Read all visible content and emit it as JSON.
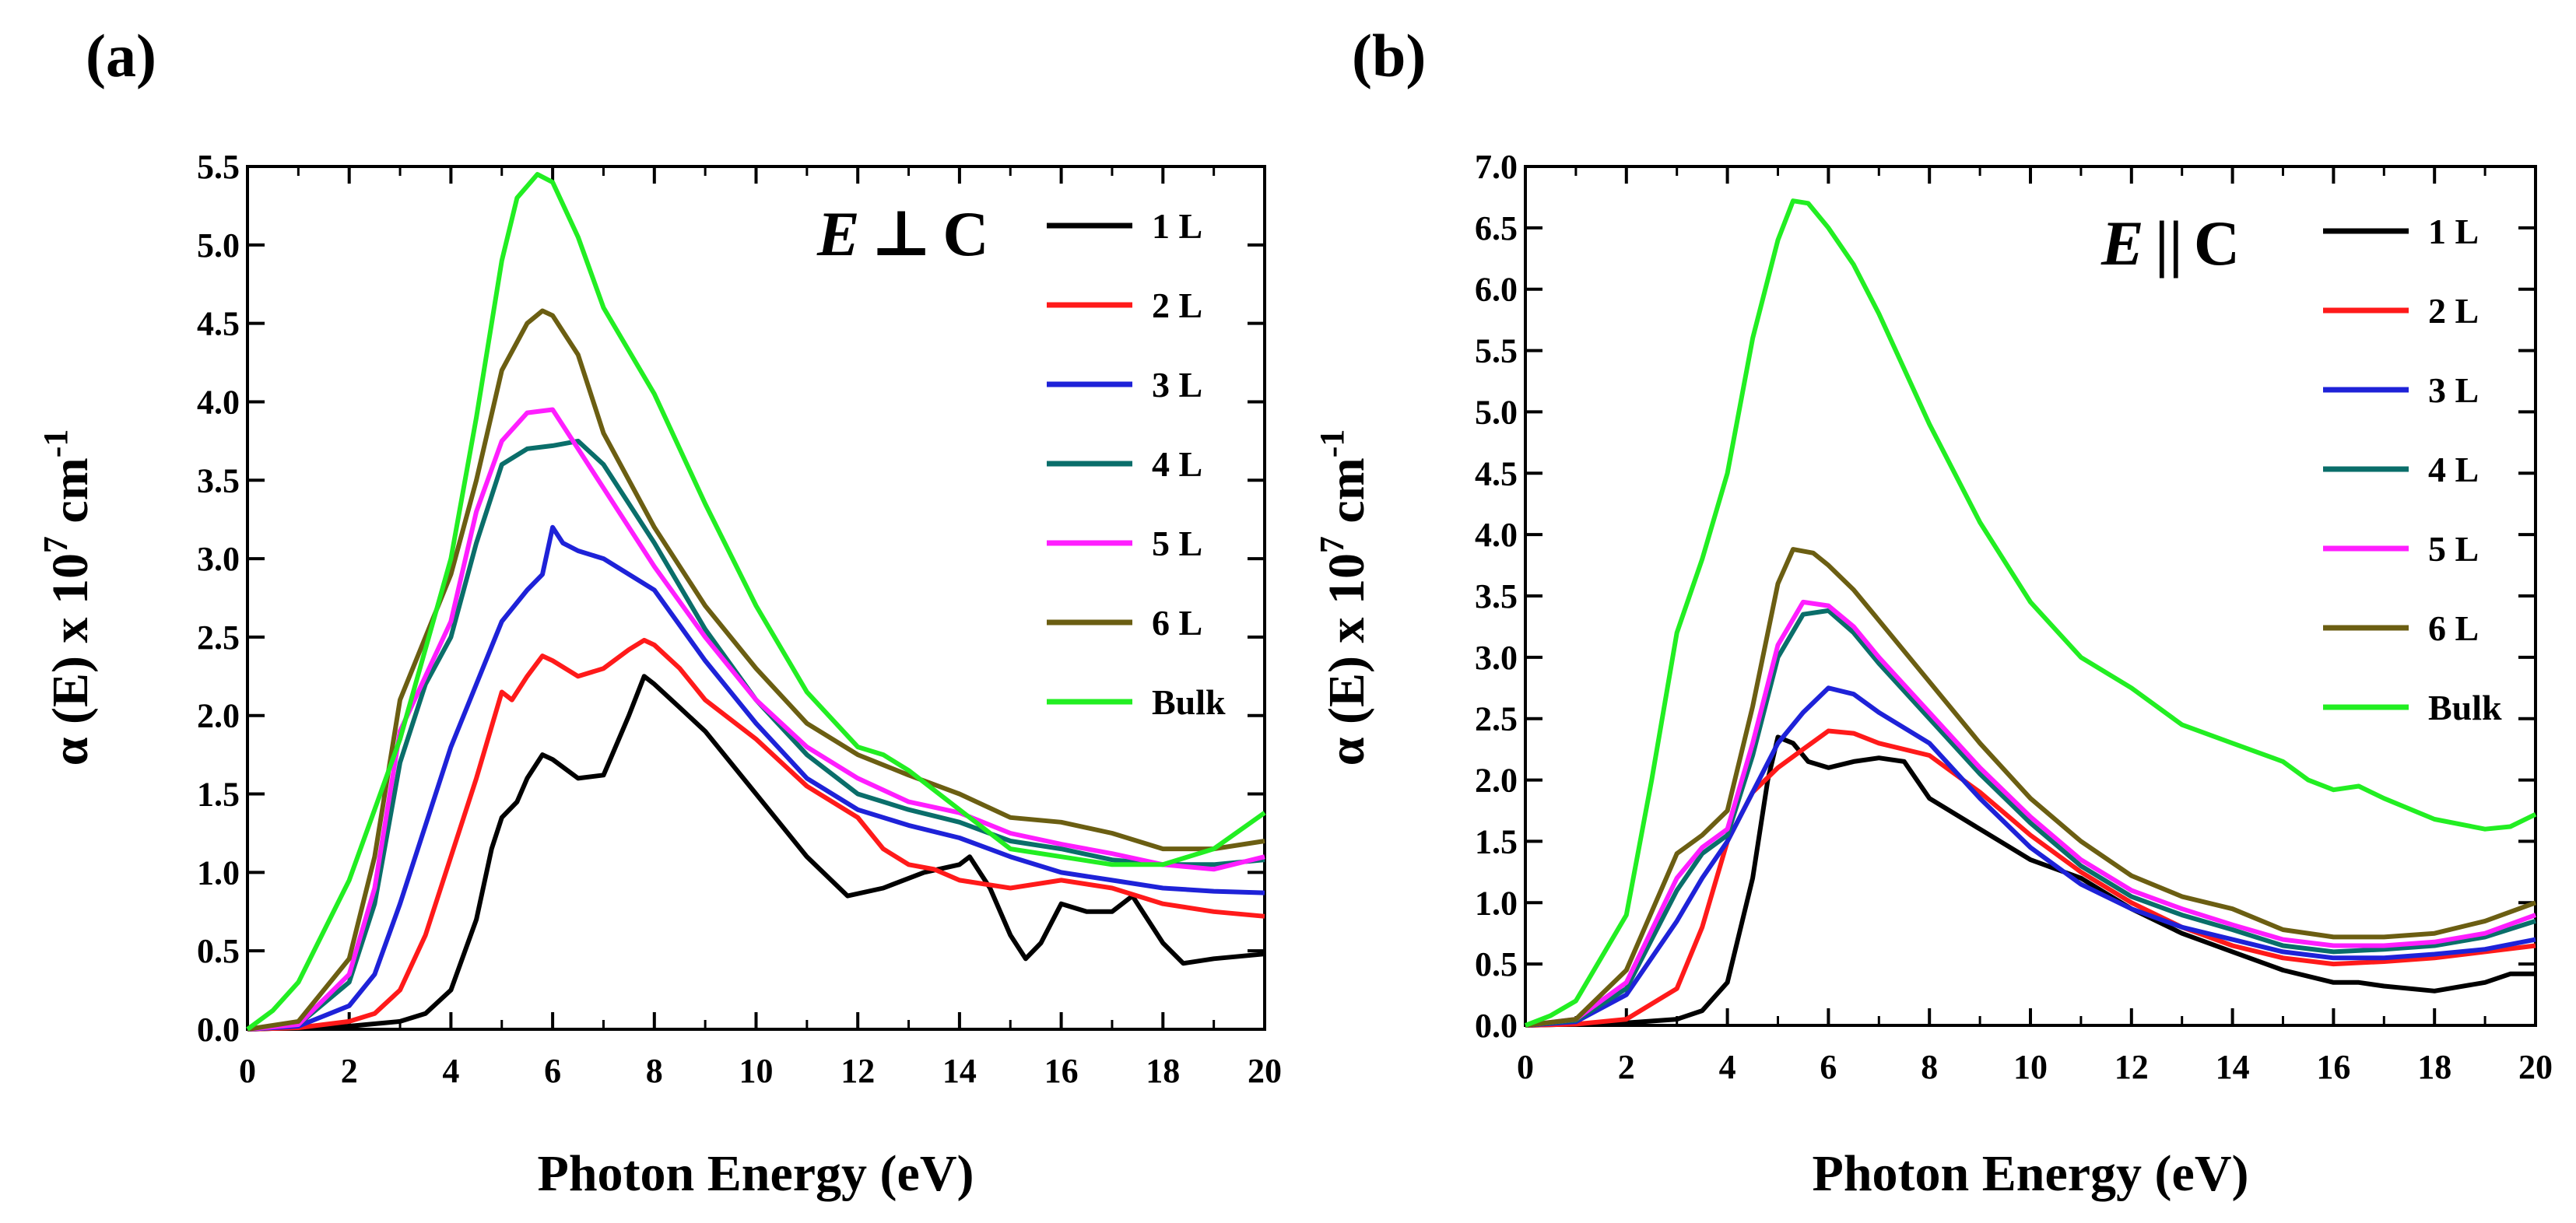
{
  "figure": {
    "series_colors": {
      "1 L": "#000000",
      "2 L": "#ff1a1a",
      "3 L": "#1e22d8",
      "4 L": "#0a6e6a",
      "5 L": "#ff1eff",
      "6 L": "#6b5e12",
      "Bulk": "#22ee22"
    }
  },
  "chart_data": [
    {
      "panel": "(a)",
      "type": "line",
      "polarization": {
        "vector": "E",
        "symbol": "⊥",
        "axis": "C"
      },
      "xlabel": "Photon Energy (eV)",
      "ylabel": {
        "prefix": "α (E) x 10",
        "exp1": "7",
        "mid": " cm",
        "exp2": "-1"
      },
      "xlim": [
        0,
        20
      ],
      "ylim": [
        0,
        5.5
      ],
      "xticks": [
        "0",
        "2",
        "4",
        "6",
        "8",
        "10",
        "12",
        "14",
        "16",
        "18",
        "20"
      ],
      "yticks": [
        "0.0",
        "0.5",
        "1.0",
        "1.5",
        "2.0",
        "2.5",
        "3.0",
        "3.5",
        "4.0",
        "4.5",
        "5.0",
        "5.5"
      ],
      "legend": [
        "1 L",
        "2 L",
        "3 L",
        "4 L",
        "5 L",
        "6 L",
        "Bulk"
      ],
      "series": [
        {
          "name": "1 L",
          "x": [
            0,
            1,
            2,
            3,
            3.5,
            4,
            4.5,
            4.8,
            5,
            5.3,
            5.5,
            5.8,
            6,
            6.5,
            7,
            7.5,
            7.8,
            8,
            8.5,
            9,
            10,
            11,
            11.8,
            12.5,
            13.3,
            14,
            14.2,
            14.6,
            15,
            15.3,
            15.6,
            16,
            16.5,
            17,
            17.4,
            18,
            18.4,
            19,
            20
          ],
          "y": [
            0,
            0.01,
            0.02,
            0.05,
            0.1,
            0.25,
            0.7,
            1.15,
            1.35,
            1.45,
            1.6,
            1.75,
            1.72,
            1.6,
            1.62,
            2.0,
            2.25,
            2.2,
            2.05,
            1.9,
            1.5,
            1.1,
            0.85,
            0.9,
            1.0,
            1.05,
            1.1,
            0.9,
            0.6,
            0.45,
            0.55,
            0.8,
            0.75,
            0.75,
            0.85,
            0.55,
            0.42,
            0.45,
            0.48
          ]
        },
        {
          "name": "2 L",
          "x": [
            0,
            1,
            2,
            2.5,
            3,
            3.5,
            4,
            4.5,
            5,
            5.2,
            5.5,
            5.8,
            6,
            6.5,
            7,
            7.5,
            7.8,
            8,
            8.5,
            9,
            10,
            11,
            12,
            12.5,
            13,
            13.5,
            14,
            15,
            16,
            17,
            18,
            19,
            20
          ],
          "y": [
            0,
            0.01,
            0.05,
            0.1,
            0.25,
            0.6,
            1.1,
            1.6,
            2.15,
            2.1,
            2.25,
            2.38,
            2.35,
            2.25,
            2.3,
            2.42,
            2.48,
            2.45,
            2.3,
            2.1,
            1.85,
            1.55,
            1.35,
            1.15,
            1.05,
            1.02,
            0.95,
            0.9,
            0.95,
            0.9,
            0.8,
            0.75,
            0.72
          ]
        },
        {
          "name": "3 L",
          "x": [
            0,
            1,
            2,
            2.5,
            3,
            3.5,
            4,
            4.5,
            5,
            5.5,
            5.8,
            6,
            6.2,
            6.5,
            7,
            8,
            9,
            10,
            11,
            12,
            13,
            14,
            15,
            16,
            17,
            18,
            19,
            20
          ],
          "y": [
            0,
            0.02,
            0.15,
            0.35,
            0.8,
            1.3,
            1.8,
            2.2,
            2.6,
            2.8,
            2.9,
            3.2,
            3.1,
            3.05,
            3.0,
            2.8,
            2.35,
            1.95,
            1.6,
            1.4,
            1.3,
            1.22,
            1.1,
            1.0,
            0.95,
            0.9,
            0.88,
            0.87
          ]
        },
        {
          "name": "4 L",
          "x": [
            0,
            1,
            2,
            2.5,
            3,
            3.5,
            4,
            4.5,
            5,
            5.5,
            6,
            6.5,
            7,
            8,
            9,
            10,
            11,
            12,
            13,
            14,
            15,
            16,
            17,
            18,
            19,
            20
          ],
          "y": [
            0,
            0.03,
            0.3,
            0.8,
            1.7,
            2.2,
            2.5,
            3.1,
            3.6,
            3.7,
            3.72,
            3.75,
            3.6,
            3.1,
            2.55,
            2.1,
            1.75,
            1.5,
            1.4,
            1.32,
            1.2,
            1.15,
            1.08,
            1.05,
            1.05,
            1.08
          ]
        },
        {
          "name": "5 L",
          "x": [
            0,
            1,
            2,
            2.5,
            3,
            3.5,
            4,
            4.5,
            5,
            5.5,
            6,
            6.5,
            7,
            8,
            9,
            10,
            11,
            12,
            13,
            14,
            15,
            16,
            17,
            18,
            19,
            20
          ],
          "y": [
            0,
            0.03,
            0.35,
            0.9,
            1.9,
            2.25,
            2.6,
            3.3,
            3.75,
            3.93,
            3.95,
            3.7,
            3.45,
            2.95,
            2.5,
            2.1,
            1.8,
            1.6,
            1.45,
            1.38,
            1.25,
            1.18,
            1.12,
            1.05,
            1.02,
            1.1
          ]
        },
        {
          "name": "6 L",
          "x": [
            0,
            1,
            2,
            2.5,
            3,
            3.5,
            4,
            4.5,
            5,
            5.5,
            5.8,
            6,
            6.5,
            7,
            8,
            9,
            10,
            11,
            12,
            13,
            14,
            15,
            16,
            17,
            18,
            19,
            20
          ],
          "y": [
            0,
            0.05,
            0.45,
            1.1,
            2.1,
            2.5,
            2.9,
            3.5,
            4.2,
            4.5,
            4.58,
            4.55,
            4.3,
            3.8,
            3.2,
            2.7,
            2.3,
            1.95,
            1.75,
            1.62,
            1.5,
            1.35,
            1.32,
            1.25,
            1.15,
            1.15,
            1.2
          ]
        },
        {
          "name": "Bulk",
          "x": [
            0,
            0.5,
            1,
            2,
            3,
            4,
            4.5,
            5,
            5.3,
            5.7,
            6,
            6.5,
            7,
            8,
            9,
            10,
            11,
            12,
            12.5,
            13,
            14,
            15,
            16,
            17,
            18,
            19,
            20
          ],
          "y": [
            0,
            0.12,
            0.3,
            0.95,
            1.85,
            3.0,
            3.9,
            4.9,
            5.3,
            5.45,
            5.4,
            5.05,
            4.6,
            4.05,
            3.35,
            2.7,
            2.15,
            1.8,
            1.75,
            1.65,
            1.4,
            1.15,
            1.1,
            1.05,
            1.05,
            1.15,
            1.38
          ]
        }
      ]
    },
    {
      "panel": "(b)",
      "type": "line",
      "polarization": {
        "vector": "E",
        "symbol": "||",
        "axis": "C"
      },
      "xlabel": "Photon Energy (eV)",
      "ylabel": {
        "prefix": "α (E) x 10",
        "exp1": "7",
        "mid": " cm",
        "exp2": "-1"
      },
      "xlim": [
        0,
        20
      ],
      "ylim": [
        0,
        7.0
      ],
      "xticks": [
        "0",
        "2",
        "4",
        "6",
        "8",
        "10",
        "12",
        "14",
        "16",
        "18",
        "20"
      ],
      "yticks": [
        "0.0",
        "0.5",
        "1.0",
        "1.5",
        "2.0",
        "2.5",
        "3.0",
        "3.5",
        "4.0",
        "4.5",
        "5.0",
        "5.5",
        "6.0",
        "6.5",
        "7.0"
      ],
      "legend": [
        "1 L",
        "2 L",
        "3 L",
        "4 L",
        "5 L",
        "6 L",
        "Bulk"
      ],
      "series": [
        {
          "name": "1 L",
          "x": [
            0,
            1,
            2,
            3,
            3.5,
            4,
            4.5,
            4.8,
            5,
            5.3,
            5.6,
            6,
            6.5,
            7,
            7.5,
            8,
            9,
            10,
            11,
            12,
            13,
            14,
            15,
            16,
            16.5,
            17,
            18,
            19,
            19.5,
            20
          ],
          "y": [
            0,
            0.01,
            0.02,
            0.05,
            0.12,
            0.35,
            1.2,
            2.0,
            2.35,
            2.3,
            2.15,
            2.1,
            2.15,
            2.18,
            2.15,
            1.85,
            1.6,
            1.35,
            1.2,
            0.95,
            0.75,
            0.6,
            0.45,
            0.35,
            0.35,
            0.32,
            0.28,
            0.35,
            0.42,
            0.42
          ]
        },
        {
          "name": "2 L",
          "x": [
            0,
            1,
            2,
            3,
            3.5,
            4,
            4.5,
            5,
            5.5,
            6,
            6.5,
            7,
            8,
            9,
            10,
            11,
            12,
            13,
            14,
            15,
            16,
            17,
            18,
            19,
            20
          ],
          "y": [
            0,
            0.01,
            0.05,
            0.3,
            0.8,
            1.5,
            1.9,
            2.1,
            2.25,
            2.4,
            2.38,
            2.3,
            2.2,
            1.9,
            1.55,
            1.25,
            1.0,
            0.8,
            0.65,
            0.55,
            0.5,
            0.52,
            0.55,
            0.6,
            0.65
          ]
        },
        {
          "name": "3 L",
          "x": [
            0,
            1,
            2,
            3,
            3.5,
            4,
            4.5,
            5,
            5.5,
            6,
            6.5,
            7,
            8,
            9,
            10,
            11,
            12,
            13,
            14,
            15,
            16,
            17,
            18,
            19,
            20
          ],
          "y": [
            0,
            0.03,
            0.25,
            0.85,
            1.2,
            1.5,
            1.9,
            2.3,
            2.55,
            2.75,
            2.7,
            2.55,
            2.3,
            1.85,
            1.45,
            1.15,
            0.95,
            0.8,
            0.7,
            0.6,
            0.55,
            0.55,
            0.58,
            0.62,
            0.7
          ]
        },
        {
          "name": "4 L",
          "x": [
            0,
            1,
            2,
            3,
            3.5,
            4,
            4.5,
            5,
            5.5,
            6,
            6.5,
            7,
            8,
            9,
            10,
            11,
            12,
            13,
            14,
            15,
            16,
            17,
            18,
            19,
            20
          ],
          "y": [
            0,
            0.04,
            0.3,
            1.1,
            1.4,
            1.55,
            2.2,
            3.0,
            3.35,
            3.38,
            3.2,
            2.95,
            2.5,
            2.05,
            1.65,
            1.3,
            1.05,
            0.9,
            0.78,
            0.65,
            0.6,
            0.62,
            0.65,
            0.72,
            0.85
          ]
        },
        {
          "name": "5 L",
          "x": [
            0,
            1,
            2,
            3,
            3.5,
            4,
            4.5,
            5,
            5.5,
            6,
            6.5,
            7,
            8,
            9,
            10,
            11,
            12,
            13,
            14,
            15,
            16,
            17,
            18,
            19,
            20
          ],
          "y": [
            0,
            0.05,
            0.35,
            1.2,
            1.45,
            1.6,
            2.3,
            3.1,
            3.45,
            3.42,
            3.25,
            3.0,
            2.55,
            2.1,
            1.7,
            1.35,
            1.1,
            0.95,
            0.82,
            0.7,
            0.65,
            0.65,
            0.68,
            0.75,
            0.9
          ]
        },
        {
          "name": "6 L",
          "x": [
            0,
            1,
            2,
            3,
            3.5,
            4,
            4.5,
            5,
            5.3,
            5.7,
            6,
            6.5,
            7,
            8,
            9,
            10,
            11,
            12,
            13,
            14,
            15,
            16,
            17,
            18,
            19,
            20
          ],
          "y": [
            0,
            0.05,
            0.45,
            1.4,
            1.55,
            1.75,
            2.6,
            3.6,
            3.88,
            3.85,
            3.75,
            3.55,
            3.3,
            2.8,
            2.3,
            1.85,
            1.5,
            1.22,
            1.05,
            0.95,
            0.78,
            0.72,
            0.72,
            0.75,
            0.85,
            1.0
          ]
        },
        {
          "name": "Bulk",
          "x": [
            0,
            0.5,
            1,
            2,
            2.5,
            3,
            3.5,
            4,
            4.5,
            5,
            5.3,
            5.6,
            6,
            6.5,
            7,
            8,
            9,
            10,
            11,
            12,
            13,
            14,
            15,
            15.5,
            16,
            16.5,
            17,
            18,
            19,
            19.5,
            20
          ],
          "y": [
            0,
            0.08,
            0.2,
            0.9,
            2.0,
            3.2,
            3.8,
            4.5,
            5.6,
            6.4,
            6.72,
            6.7,
            6.5,
            6.2,
            5.8,
            4.9,
            4.1,
            3.45,
            3.0,
            2.75,
            2.45,
            2.3,
            2.15,
            2.0,
            1.92,
            1.95,
            1.85,
            1.68,
            1.6,
            1.62,
            1.72
          ]
        }
      ]
    }
  ]
}
